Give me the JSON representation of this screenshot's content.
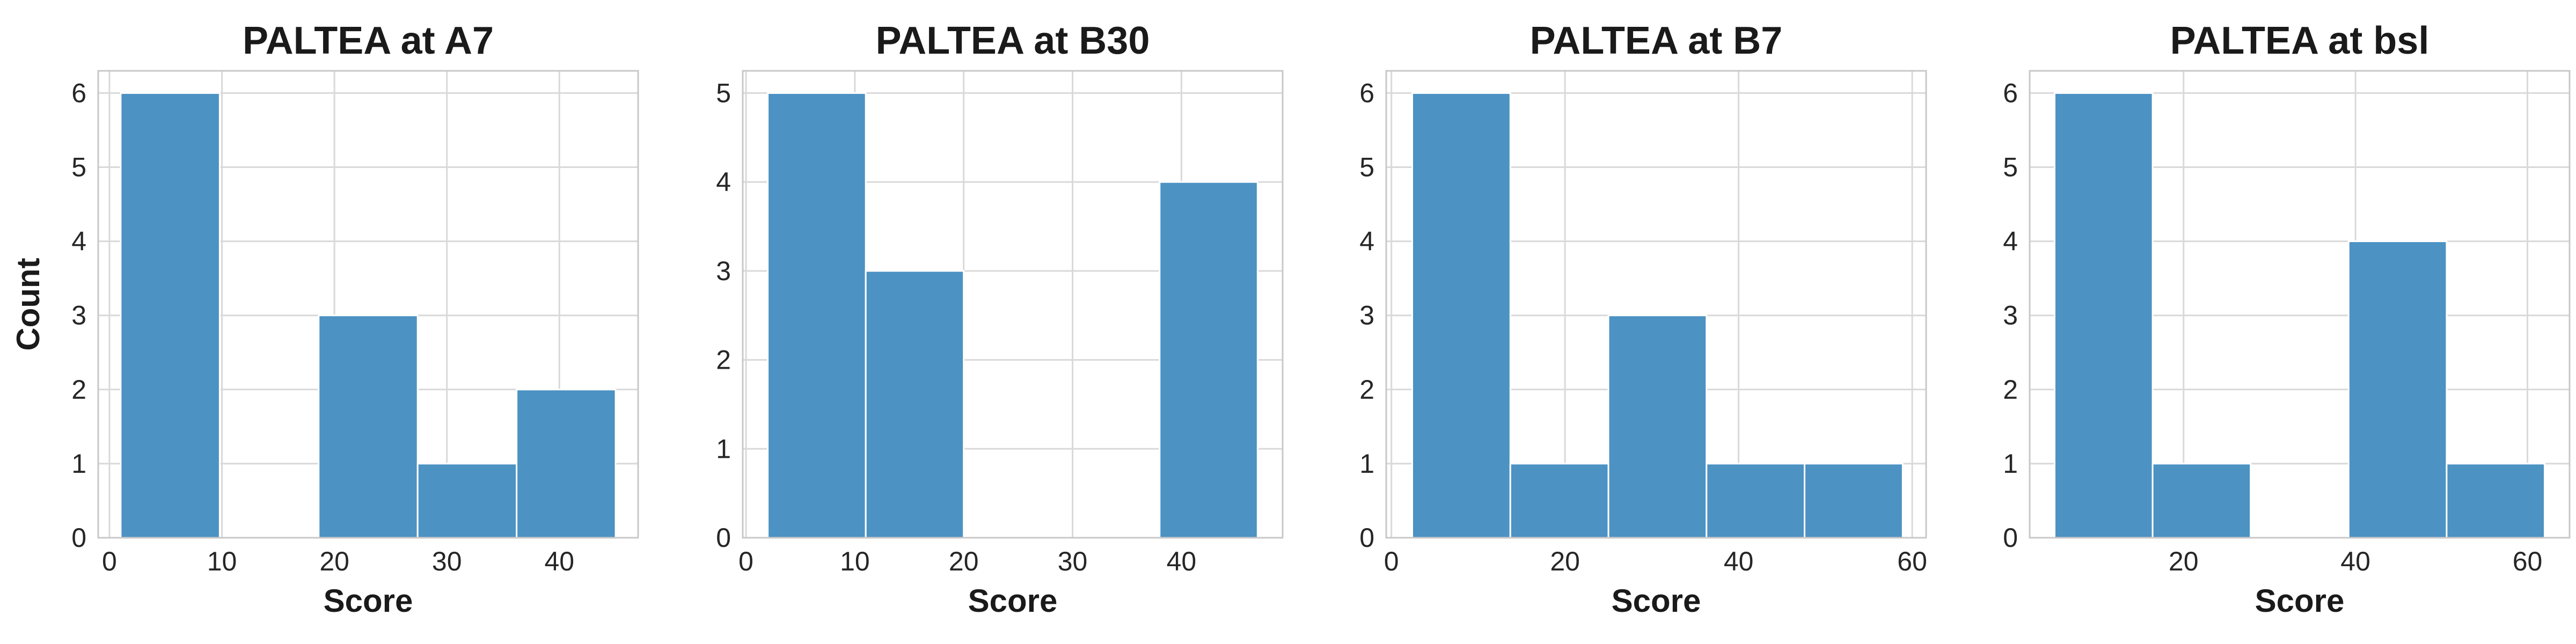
{
  "chart_data": [
    {
      "type": "bar",
      "title": "PALTEA at A7",
      "xlabel": "Score",
      "ylabel": "Count",
      "bar_color": "#4c92c3",
      "grid": true,
      "xlim": [
        -1,
        47
      ],
      "ylim": [
        0,
        6.3
      ],
      "xticks": [
        0,
        10,
        20,
        30,
        40
      ],
      "yticks": [
        0,
        1,
        2,
        3,
        4,
        5,
        6
      ],
      "bins": [
        {
          "x0": 1,
          "x1": 9.8,
          "count": 6
        },
        {
          "x0": 9.8,
          "x1": 18.6,
          "count": 0
        },
        {
          "x0": 18.6,
          "x1": 27.4,
          "count": 3
        },
        {
          "x0": 27.4,
          "x1": 36.2,
          "count": 1
        },
        {
          "x0": 36.2,
          "x1": 45,
          "count": 2
        }
      ]
    },
    {
      "type": "bar",
      "title": "PALTEA at B30",
      "xlabel": "Score",
      "ylabel": "",
      "bar_color": "#4c92c3",
      "grid": true,
      "xlim": [
        -0.3,
        49.3
      ],
      "ylim": [
        0,
        5.25
      ],
      "xticks": [
        0,
        10,
        20,
        30,
        40
      ],
      "yticks": [
        0,
        1,
        2,
        3,
        4,
        5
      ],
      "bins": [
        {
          "x0": 2,
          "x1": 11,
          "count": 5
        },
        {
          "x0": 11,
          "x1": 20,
          "count": 3
        },
        {
          "x0": 20,
          "x1": 29,
          "count": 0
        },
        {
          "x0": 29,
          "x1": 38,
          "count": 0
        },
        {
          "x0": 38,
          "x1": 47,
          "count": 4
        }
      ]
    },
    {
      "type": "bar",
      "title": "PALTEA at B7",
      "xlabel": "Score",
      "ylabel": "",
      "bar_color": "#4c92c3",
      "grid": true,
      "xlim": [
        -0.6,
        61.6
      ],
      "ylim": [
        0,
        6.3
      ],
      "xticks": [
        0,
        20,
        40,
        60
      ],
      "yticks": [
        0,
        1,
        2,
        3,
        4,
        5,
        6
      ],
      "bins": [
        {
          "x0": 2.4,
          "x1": 13.7,
          "count": 6
        },
        {
          "x0": 13.7,
          "x1": 25,
          "count": 1
        },
        {
          "x0": 25,
          "x1": 36.3,
          "count": 3
        },
        {
          "x0": 36.3,
          "x1": 47.6,
          "count": 1
        },
        {
          "x0": 47.6,
          "x1": 58.9,
          "count": 1
        }
      ]
    },
    {
      "type": "bar",
      "title": "PALTEA at bsl",
      "xlabel": "Score",
      "ylabel": "",
      "bar_color": "#4c92c3",
      "grid": true,
      "xlim": [
        2.1,
        64.9
      ],
      "ylim": [
        0,
        6.3
      ],
      "xticks": [
        20,
        40,
        60
      ],
      "yticks": [
        0,
        1,
        2,
        3,
        4,
        5,
        6
      ],
      "bins": [
        {
          "x0": 5,
          "x1": 16.4,
          "count": 6
        },
        {
          "x0": 16.4,
          "x1": 27.8,
          "count": 1
        },
        {
          "x0": 27.8,
          "x1": 39.2,
          "count": 0
        },
        {
          "x0": 39.2,
          "x1": 50.6,
          "count": 4
        },
        {
          "x0": 50.6,
          "x1": 62,
          "count": 1
        }
      ]
    }
  ]
}
